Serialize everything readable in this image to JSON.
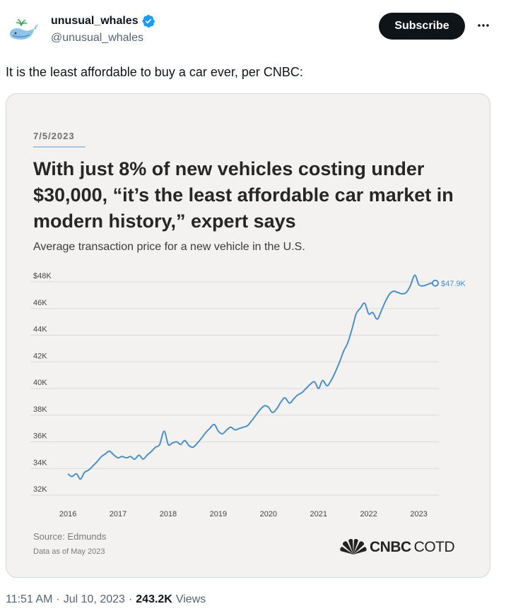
{
  "author": {
    "display_name": "unusual_whales",
    "handle": "@unusual_whales",
    "avatar_icon": "whale-logo-icon",
    "verified_icon": "verified-badge-icon",
    "verified_color": "#1d9bf0"
  },
  "actions": {
    "subscribe_label": "Subscribe",
    "more_icon": "more-dots-icon"
  },
  "tweet": {
    "text": "It is the least affordable to buy a car ever, per CNBC:"
  },
  "card": {
    "date": "7/5/2023",
    "headline": "With just 8% of new vehicles costing under $30,000, “it’s the least affordable car market in modern history,” expert says",
    "subtitle": "Average transaction price for a new vehicle in the U.S.",
    "source": "Source: Edmunds",
    "as_of": "Data as of May 2023",
    "logo_brand": "CNBC",
    "logo_suffix": "COTD",
    "logo_icon": "peacock-icon"
  },
  "chart_data": {
    "type": "line",
    "title": "Average transaction price for a new vehicle in the U.S.",
    "xlabel": "",
    "ylabel": "",
    "ylim": [
      32,
      48
    ],
    "xlim": [
      2015.9,
      2023.4
    ],
    "x_ticks": [
      2016,
      2017,
      2018,
      2019,
      2020,
      2021,
      2022,
      2023
    ],
    "x_tick_labels": [
      "2016",
      "2017",
      "2018",
      "2019",
      "2020",
      "2021",
      "2022",
      "2023"
    ],
    "y_ticks": [
      32,
      34,
      36,
      38,
      40,
      42,
      44,
      46,
      48
    ],
    "y_tick_labels": [
      "32K",
      "34K",
      "36K",
      "38K",
      "40K",
      "42K",
      "44K",
      "46K",
      "$48K"
    ],
    "line_color": "#4a90c7",
    "grid": true,
    "end_label": "$47.9K",
    "series": [
      {
        "name": "Average transaction price ($K)",
        "points": [
          [
            2016.0,
            33.6
          ],
          [
            2016.08,
            33.4
          ],
          [
            2016.17,
            33.6
          ],
          [
            2016.25,
            33.2
          ],
          [
            2016.33,
            33.7
          ],
          [
            2016.42,
            33.9
          ],
          [
            2016.5,
            34.2
          ],
          [
            2016.58,
            34.5
          ],
          [
            2016.67,
            34.9
          ],
          [
            2016.75,
            35.1
          ],
          [
            2016.83,
            35.3
          ],
          [
            2016.92,
            35.0
          ],
          [
            2017.0,
            34.8
          ],
          [
            2017.08,
            34.9
          ],
          [
            2017.17,
            34.8
          ],
          [
            2017.25,
            34.9
          ],
          [
            2017.33,
            34.7
          ],
          [
            2017.42,
            35.0
          ],
          [
            2017.5,
            34.7
          ],
          [
            2017.58,
            35.0
          ],
          [
            2017.67,
            35.3
          ],
          [
            2017.75,
            35.6
          ],
          [
            2017.83,
            35.8
          ],
          [
            2017.92,
            36.8
          ],
          [
            2018.0,
            35.8
          ],
          [
            2018.08,
            35.9
          ],
          [
            2018.17,
            36.0
          ],
          [
            2018.25,
            35.8
          ],
          [
            2018.33,
            36.1
          ],
          [
            2018.42,
            35.7
          ],
          [
            2018.5,
            35.6
          ],
          [
            2018.58,
            35.9
          ],
          [
            2018.67,
            36.3
          ],
          [
            2018.75,
            36.7
          ],
          [
            2018.83,
            37.0
          ],
          [
            2018.92,
            37.3
          ],
          [
            2019.0,
            36.8
          ],
          [
            2019.08,
            36.6
          ],
          [
            2019.17,
            36.9
          ],
          [
            2019.25,
            37.1
          ],
          [
            2019.33,
            36.9
          ],
          [
            2019.42,
            37.0
          ],
          [
            2019.5,
            37.1
          ],
          [
            2019.58,
            37.2
          ],
          [
            2019.67,
            37.6
          ],
          [
            2019.75,
            38.0
          ],
          [
            2019.83,
            38.4
          ],
          [
            2019.92,
            38.7
          ],
          [
            2020.0,
            38.6
          ],
          [
            2020.08,
            38.2
          ],
          [
            2020.17,
            38.5
          ],
          [
            2020.25,
            39.0
          ],
          [
            2020.33,
            39.3
          ],
          [
            2020.42,
            38.9
          ],
          [
            2020.5,
            39.2
          ],
          [
            2020.58,
            39.5
          ],
          [
            2020.67,
            39.7
          ],
          [
            2020.75,
            40.0
          ],
          [
            2020.83,
            40.3
          ],
          [
            2020.92,
            40.5
          ],
          [
            2021.0,
            40.0
          ],
          [
            2021.08,
            40.6
          ],
          [
            2021.17,
            40.2
          ],
          [
            2021.25,
            40.6
          ],
          [
            2021.33,
            41.2
          ],
          [
            2021.42,
            42.0
          ],
          [
            2021.5,
            42.8
          ],
          [
            2021.58,
            43.4
          ],
          [
            2021.67,
            44.5
          ],
          [
            2021.75,
            45.6
          ],
          [
            2021.83,
            46.0
          ],
          [
            2021.92,
            46.4
          ],
          [
            2022.0,
            45.6
          ],
          [
            2022.08,
            45.7
          ],
          [
            2022.17,
            45.2
          ],
          [
            2022.25,
            45.8
          ],
          [
            2022.33,
            46.5
          ],
          [
            2022.42,
            47.1
          ],
          [
            2022.5,
            47.3
          ],
          [
            2022.58,
            47.2
          ],
          [
            2022.67,
            47.1
          ],
          [
            2022.75,
            47.2
          ],
          [
            2022.83,
            47.7
          ],
          [
            2022.92,
            48.5
          ],
          [
            2023.0,
            47.8
          ],
          [
            2023.08,
            47.7
          ],
          [
            2023.17,
            47.8
          ],
          [
            2023.25,
            47.9
          ],
          [
            2023.33,
            47.9
          ]
        ]
      }
    ]
  },
  "meta": {
    "time": "11:51 AM",
    "separator": "·",
    "date": "Jul 10, 2023",
    "separator2": "·",
    "views_count": "243.2K",
    "views_label": "Views"
  }
}
